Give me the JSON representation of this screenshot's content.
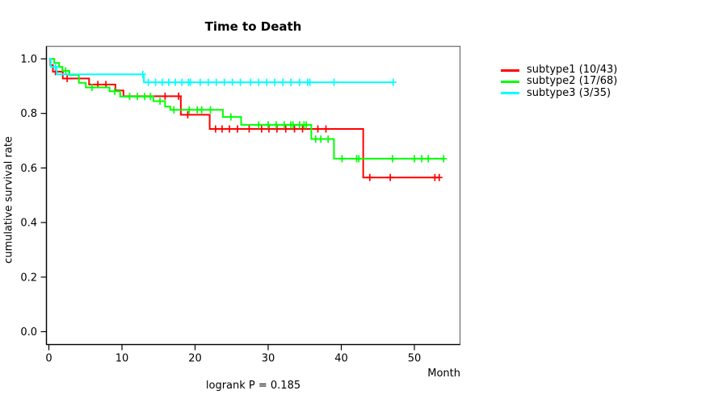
{
  "chart_data": {
    "type": "line",
    "variant": "kaplan-meier-step",
    "title": "Time to Death",
    "xlabel": "Month",
    "ylabel": "cumulative survival rate",
    "annotation": "logrank P = 0.185",
    "xlim": [
      -2.25,
      56.3
    ],
    "ylim": [
      0.0,
      1.0
    ],
    "x_ticks": [
      0,
      10,
      20,
      30,
      40,
      50
    ],
    "y_ticks": [
      "0.0",
      "0.2",
      "0.4",
      "0.6",
      "0.8",
      "1.0"
    ],
    "grid": false,
    "legend_position": "right-outside-top",
    "series": [
      {
        "name": "subtype1 (10/43)",
        "color": "#ff0000",
        "start": [
          0,
          1.0
        ],
        "steps": [
          [
            0.2,
            0.977
          ],
          [
            0.55,
            0.953
          ],
          [
            1.9,
            0.928
          ],
          [
            5.5,
            0.906
          ],
          [
            9.1,
            0.884
          ],
          [
            10.2,
            0.863
          ],
          [
            18.05,
            0.795
          ],
          [
            22.0,
            0.743
          ],
          [
            43.0,
            0.565
          ]
        ],
        "end_time": 53.4,
        "censor_marks": [
          [
            0.9,
            0.953
          ],
          [
            2.5,
            0.928
          ],
          [
            6.7,
            0.906
          ],
          [
            7.8,
            0.906
          ],
          [
            15.9,
            0.863
          ],
          [
            17.75,
            0.863
          ],
          [
            19.0,
            0.795
          ],
          [
            22.8,
            0.743
          ],
          [
            23.7,
            0.743
          ],
          [
            24.7,
            0.743
          ],
          [
            25.8,
            0.743
          ],
          [
            27.4,
            0.743
          ],
          [
            29.1,
            0.743
          ],
          [
            30.1,
            0.743
          ],
          [
            31.2,
            0.743
          ],
          [
            32.4,
            0.743
          ],
          [
            33.6,
            0.743
          ],
          [
            34.7,
            0.743
          ],
          [
            36.8,
            0.743
          ],
          [
            37.9,
            0.743
          ],
          [
            43.9,
            0.565
          ],
          [
            46.7,
            0.565
          ],
          [
            52.8,
            0.565
          ],
          [
            53.4,
            0.565
          ]
        ]
      },
      {
        "name": "subtype2 (17/68)",
        "color": "#00ff00",
        "start": [
          0,
          1.0
        ],
        "steps": [
          [
            0.74,
            0.985
          ],
          [
            1.4,
            0.971
          ],
          [
            1.85,
            0.956
          ],
          [
            2.8,
            0.941
          ],
          [
            4.1,
            0.912
          ],
          [
            5.05,
            0.895
          ],
          [
            8.3,
            0.881
          ],
          [
            9.75,
            0.862
          ],
          [
            14.3,
            0.845
          ],
          [
            15.9,
            0.825
          ],
          [
            16.6,
            0.813
          ],
          [
            23.8,
            0.787
          ],
          [
            26.3,
            0.758
          ],
          [
            35.9,
            0.706
          ],
          [
            39.0,
            0.634
          ]
        ],
        "end_time": 54.0,
        "censor_marks": [
          [
            2.3,
            0.956
          ],
          [
            5.9,
            0.895
          ],
          [
            9.0,
            0.881
          ],
          [
            11.05,
            0.862
          ],
          [
            12.1,
            0.862
          ],
          [
            13.1,
            0.862
          ],
          [
            13.9,
            0.862
          ],
          [
            15.2,
            0.845
          ],
          [
            17.1,
            0.813
          ],
          [
            19.2,
            0.813
          ],
          [
            20.3,
            0.813
          ],
          [
            20.9,
            0.813
          ],
          [
            22.1,
            0.813
          ],
          [
            24.9,
            0.787
          ],
          [
            28.7,
            0.758
          ],
          [
            30.0,
            0.758
          ],
          [
            31.1,
            0.758
          ],
          [
            32.2,
            0.758
          ],
          [
            33.1,
            0.758
          ],
          [
            33.4,
            0.758
          ],
          [
            34.3,
            0.758
          ],
          [
            34.9,
            0.758
          ],
          [
            35.2,
            0.758
          ],
          [
            36.5,
            0.706
          ],
          [
            37.2,
            0.706
          ],
          [
            38.2,
            0.706
          ],
          [
            40.1,
            0.634
          ],
          [
            42.1,
            0.634
          ],
          [
            42.4,
            0.634
          ],
          [
            47.0,
            0.634
          ],
          [
            50.0,
            0.634
          ],
          [
            51.0,
            0.634
          ],
          [
            51.9,
            0.634
          ],
          [
            54.0,
            0.634
          ]
        ]
      },
      {
        "name": "subtype3 (3/35)",
        "color": "#00ffff",
        "start": [
          0,
          1.0
        ],
        "steps": [
          [
            0.25,
            0.971
          ],
          [
            1.05,
            0.943
          ],
          [
            13.0,
            0.914
          ]
        ],
        "end_time": 47.2,
        "censor_marks": [
          [
            0.9,
            0.971
          ],
          [
            12.85,
            0.943
          ],
          [
            13.6,
            0.914
          ],
          [
            14.6,
            0.914
          ],
          [
            15.5,
            0.914
          ],
          [
            16.4,
            0.914
          ],
          [
            17.3,
            0.914
          ],
          [
            18.2,
            0.914
          ],
          [
            19.1,
            0.914
          ],
          [
            19.35,
            0.914
          ],
          [
            20.7,
            0.914
          ],
          [
            21.8,
            0.914
          ],
          [
            22.9,
            0.914
          ],
          [
            24.0,
            0.914
          ],
          [
            25.1,
            0.914
          ],
          [
            26.2,
            0.914
          ],
          [
            27.6,
            0.914
          ],
          [
            28.7,
            0.914
          ],
          [
            29.8,
            0.914
          ],
          [
            30.9,
            0.914
          ],
          [
            32.0,
            0.914
          ],
          [
            33.1,
            0.914
          ],
          [
            34.3,
            0.914
          ],
          [
            35.4,
            0.914
          ],
          [
            35.7,
            0.914
          ],
          [
            39.0,
            0.914
          ],
          [
            47.1,
            0.914
          ]
        ]
      }
    ]
  }
}
